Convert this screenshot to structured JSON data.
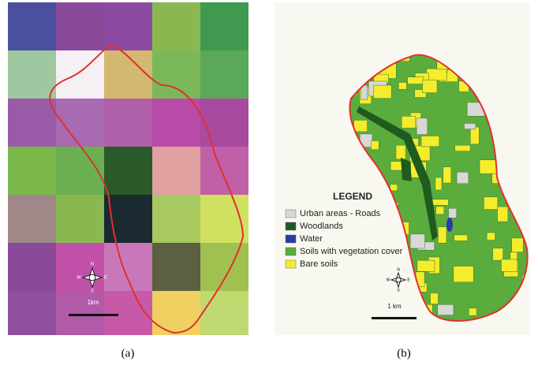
{
  "panels": [
    {
      "label": "(a)",
      "scale_label": "1km"
    },
    {
      "label": "(b)",
      "scale_label": "1 km",
      "legend": {
        "title": "LEGEND",
        "items": [
          {
            "label": "Urban areas - Roads",
            "color": "#d8d8d8"
          },
          {
            "label": "Woodlands",
            "color": "#1f5a1f"
          },
          {
            "label": "Water",
            "color": "#2a3aa8"
          },
          {
            "label": "Soils with vegetation cover",
            "color": "#5aac3c"
          },
          {
            "label": "Bare soils",
            "color": "#f4ec2c"
          }
        ]
      }
    }
  ],
  "compass": [
    "N",
    "E",
    "S",
    "W"
  ]
}
